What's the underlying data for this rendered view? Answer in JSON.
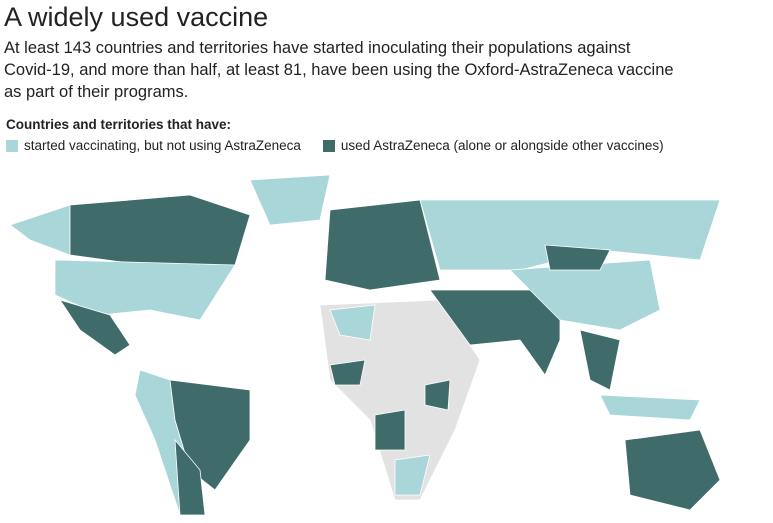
{
  "title": "A widely used vaccine",
  "description": [
    "At least 143 countries and territories have started inoculating their populations against",
    "Covid-19, and more than half, at least 81, have been using the Oxford-AstraZeneca vaccine",
    "as part of their programs."
  ],
  "legend": {
    "title": "Countries and territories that have:",
    "items": [
      {
        "name": "started vaccinating, but not using AstraZeneca",
        "color": "#a9d6d8"
      },
      {
        "name": "used AstraZeneca (alone or alongside other vaccines)",
        "color": "#3f6b6a"
      }
    ]
  }
}
